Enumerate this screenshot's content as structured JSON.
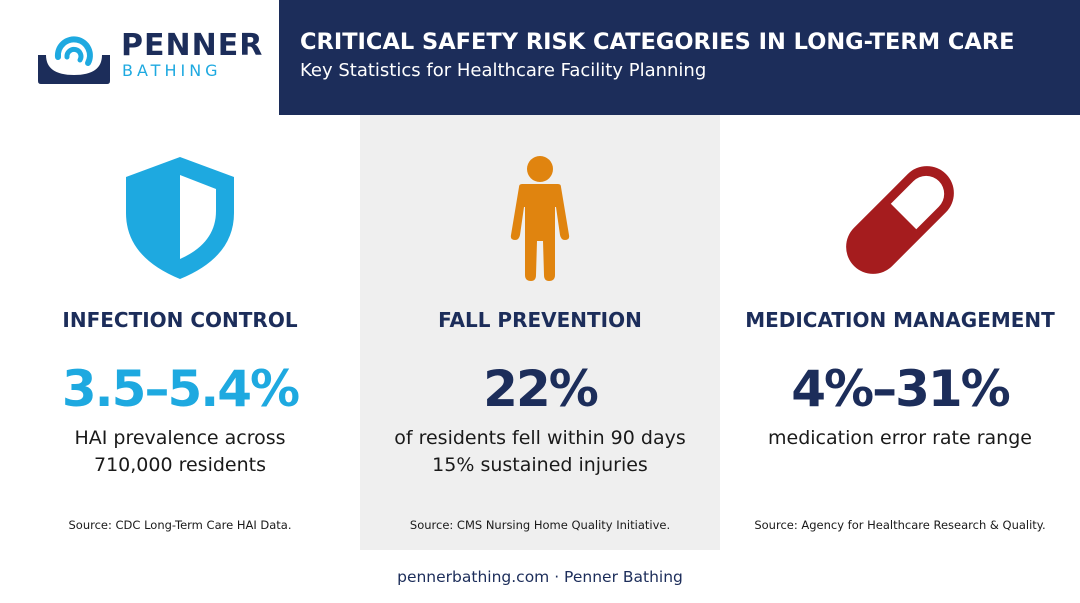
{
  "brand": {
    "name_top": "PENNER",
    "name_bottom": "BATHING",
    "colors": {
      "navy": "#1c2d5a",
      "cyan": "#1ea9e0",
      "orange": "#e0840f",
      "red": "#a51c1e",
      "panel_gray": "#efefef"
    }
  },
  "header": {
    "title": "CRITICAL SAFETY RISK CATEGORIES IN LONG-TERM CARE",
    "subtitle": "Key Statistics for Healthcare Facility Planning"
  },
  "categories": [
    {
      "icon": "shield-icon",
      "title": "INFECTION CONTROL",
      "stat": "3.5–5.4%",
      "desc_line1": "HAI prevalence across",
      "desc_line2": "710,000 residents",
      "source": "Source: CDC Long-Term Care HAI Data."
    },
    {
      "icon": "person-icon",
      "title": "FALL PREVENTION",
      "stat": "22%",
      "desc_line1": "of residents fell within 90 days",
      "desc_line2": "15% sustained injuries",
      "source": "Source: CMS Nursing Home Quality Initiative."
    },
    {
      "icon": "pill-icon",
      "title": "MEDICATION MANAGEMENT",
      "stat": "4%–31%",
      "desc_line1": "medication error rate range",
      "desc_line2": "",
      "source": "Source: Agency for Healthcare Research & Quality."
    }
  ],
  "footer": {
    "text": "pennerbathing.com · Penner Bathing"
  }
}
